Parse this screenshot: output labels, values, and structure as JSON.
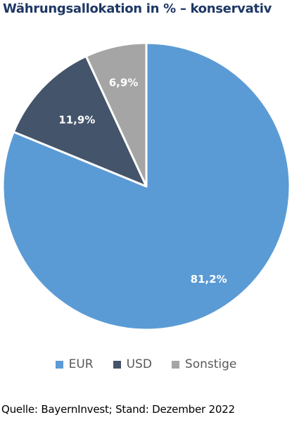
{
  "chart_data": {
    "type": "pie",
    "title": "Währungsallokation in % – konservativ",
    "slices": [
      {
        "label": "EUR",
        "value": 81.2,
        "value_label": "81,2%",
        "color": "#5b9bd5"
      },
      {
        "label": "USD",
        "value": 11.9,
        "value_label": "11,9%",
        "color": "#44546a"
      },
      {
        "label": "Sonstige",
        "value": 6.9,
        "value_label": "6,9%",
        "color": "#a5a5a5"
      }
    ],
    "legend_position": "bottom",
    "start_angle": "12 o'clock",
    "direction": "clockwise"
  },
  "source_note": "Quelle: BayernInvest; Stand: Dezember 2022"
}
